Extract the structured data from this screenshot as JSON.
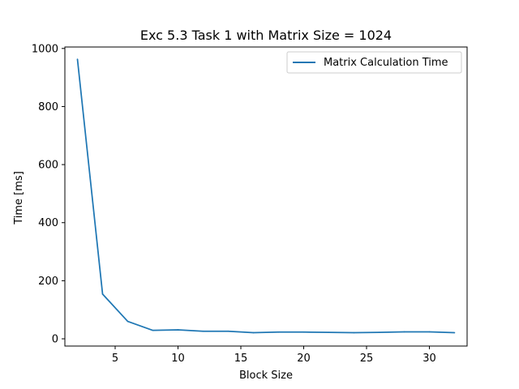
{
  "chart_data": {
    "type": "line",
    "title": "Exc 5.3 Task 1 with Matrix Size = 1024",
    "xlabel": "Block Size",
    "ylabel": "Time [ms]",
    "xlim": [
      1.0,
      33.0
    ],
    "ylim": [
      -25,
      1005
    ],
    "xticks": [
      5,
      10,
      15,
      20,
      25,
      30
    ],
    "yticks": [
      0,
      200,
      400,
      600,
      800,
      1000
    ],
    "grid": false,
    "legend_position": "top-right",
    "series": [
      {
        "name": "Matrix Calculation Time",
        "color": "#1f77b4",
        "x": [
          2,
          4,
          6,
          8,
          10,
          12,
          14,
          16,
          18,
          20,
          22,
          24,
          26,
          28,
          30,
          32
        ],
        "y": [
          963,
          154,
          60,
          29,
          31,
          26,
          26,
          21,
          23,
          23,
          22,
          21,
          22,
          24,
          24,
          21
        ]
      }
    ]
  }
}
